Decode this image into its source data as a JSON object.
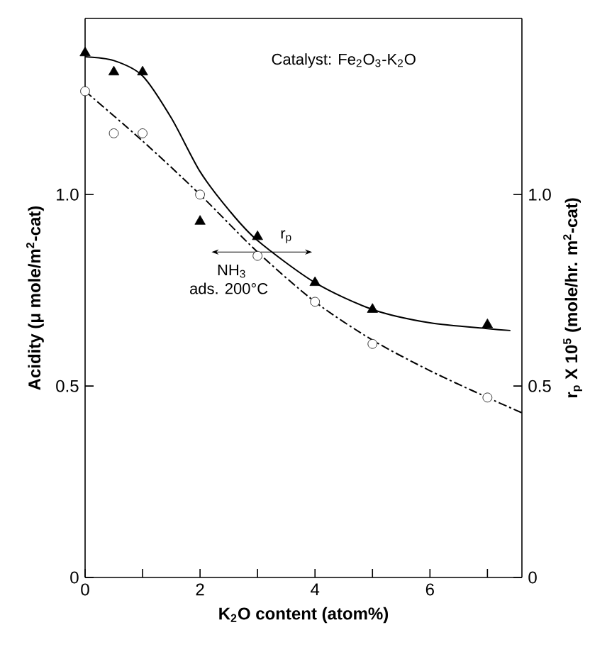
{
  "chart_data": {
    "type": "scatter",
    "xlabel": "K$_{2}$O   content                  (atom%)",
    "ylabel": "Acidity                       (μ mole/m$^{2}$-cat)",
    "y2label": "r$_{p}$ X 10$^{5}$                     (mole/hr. m$^{2}$-cat)",
    "xlim": [
      0,
      7.6
    ],
    "ylim": [
      0,
      1.46
    ],
    "y2lim": [
      0,
      1.46
    ],
    "xticks": [
      0,
      {
        "value": 1,
        "label": null
      },
      2,
      {
        "value": 3,
        "label": null
      },
      4,
      {
        "value": 5,
        "label": null
      },
      6,
      {
        "value": 7,
        "label": null
      }
    ],
    "yticks": [
      0,
      0.5,
      {
        "value": 1,
        "label": "1.0"
      }
    ],
    "y2ticks": [
      0,
      0.5,
      {
        "value": 1,
        "label": "1.0"
      }
    ],
    "grid": false,
    "series": [
      {
        "marker": "circle",
        "color": "#000000",
        "x": [
          0,
          0.5,
          1,
          2,
          3,
          4,
          5,
          7
        ],
        "values": [
          1.27,
          1.16,
          1.16,
          1.0,
          0.84,
          0.72,
          0.61,
          0.47
        ]
      },
      {
        "marker": "triangle",
        "color": "#000000",
        "axis": "y2",
        "x": [
          0,
          0.5,
          1,
          2,
          3,
          4,
          5,
          7
        ],
        "values": [
          1.37,
          1.32,
          1.32,
          0.93,
          0.89,
          0.77,
          0.7,
          0.66
        ]
      },
      {
        "type": "line",
        "line_style": "dashed",
        "color": "#000000",
        "x": [
          0,
          1,
          2,
          3,
          4,
          5,
          6,
          7,
          7.6
        ],
        "values": [
          1.27,
          1.14,
          1.0,
          0.85,
          0.72,
          0.62,
          0.54,
          0.47,
          0.43
        ]
      },
      {
        "type": "line",
        "line_style": "solid",
        "color": "#000000",
        "axis": "y2",
        "x": [
          0,
          0.5,
          1,
          1.5,
          2,
          2.5,
          3,
          4,
          5,
          6,
          7,
          7.4
        ],
        "values": [
          1.36,
          1.35,
          1.31,
          1.2,
          1.06,
          0.96,
          0.88,
          0.77,
          0.7,
          0.665,
          0.65,
          0.645
        ]
      }
    ],
    "annotations": [
      "Catalyst:  Fe$_{2}$O$_{3}$-K$_{2}$O",
      "NH$_{3}$",
      "ads. 200°C",
      "r$_{p}$"
    ]
  }
}
